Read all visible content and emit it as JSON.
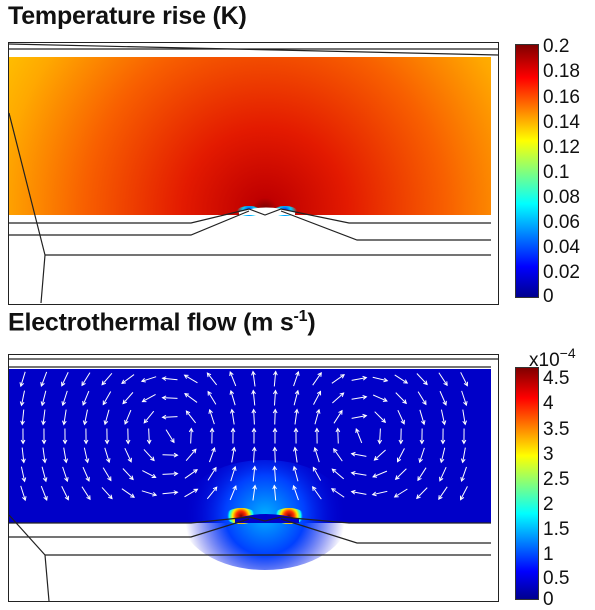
{
  "panels": [
    {
      "title": "Temperature rise (K)",
      "colorbar_ticks": [
        "0.2",
        "0.18",
        "0.16",
        "0.14",
        "0.12",
        "0.1",
        "0.08",
        "0.06",
        "0.04",
        "0.02",
        "0"
      ]
    },
    {
      "title_main": "Electrothermal flow (m s",
      "title_sup": "-1",
      "title_close": ")",
      "colorbar_exponent_base": "x10",
      "colorbar_exponent_power": "−4",
      "colorbar_ticks": [
        "4.5",
        "4",
        "3.5",
        "3",
        "2.5",
        "2",
        "1.5",
        "1",
        "0.5",
        "0"
      ]
    }
  ],
  "colors": {
    "jet_low": "#00008f",
    "jet_mid": "#ffff00",
    "jet_high": "#800000",
    "arrow": "#ffffff",
    "outline": "#222222"
  }
}
